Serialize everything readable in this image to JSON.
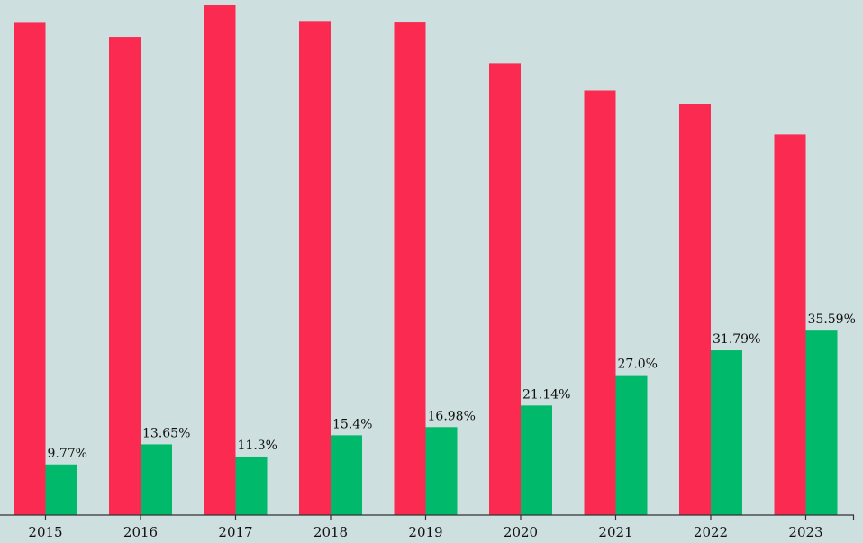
{
  "chart_data": {
    "type": "bar",
    "categories": [
      "2015",
      "2016",
      "2017",
      "2018",
      "2019",
      "2020",
      "2021",
      "2022",
      "2023"
    ],
    "series": [
      {
        "values": [
          95.15,
          92.26,
          98.35,
          95.34,
          95.21,
          87.16,
          81.93,
          79.25,
          73.43
        ],
        "color": "#fb2a51"
      },
      {
        "values": [
          9.77,
          13.65,
          11.3,
          15.4,
          16.98,
          21.14,
          27.0,
          31.79,
          35.59
        ],
        "labels": [
          "9.77%",
          "13.65%",
          "11.3%",
          "15.4%",
          "16.98%",
          "21.14%",
          "27.0%",
          "31.79%",
          "35.59%"
        ],
        "color": "#00b96b"
      }
    ],
    "ylim": [
      0,
      98.35
    ],
    "grid": false,
    "legend": "none",
    "background": "#cddfde",
    "axis_color": "#333333"
  }
}
